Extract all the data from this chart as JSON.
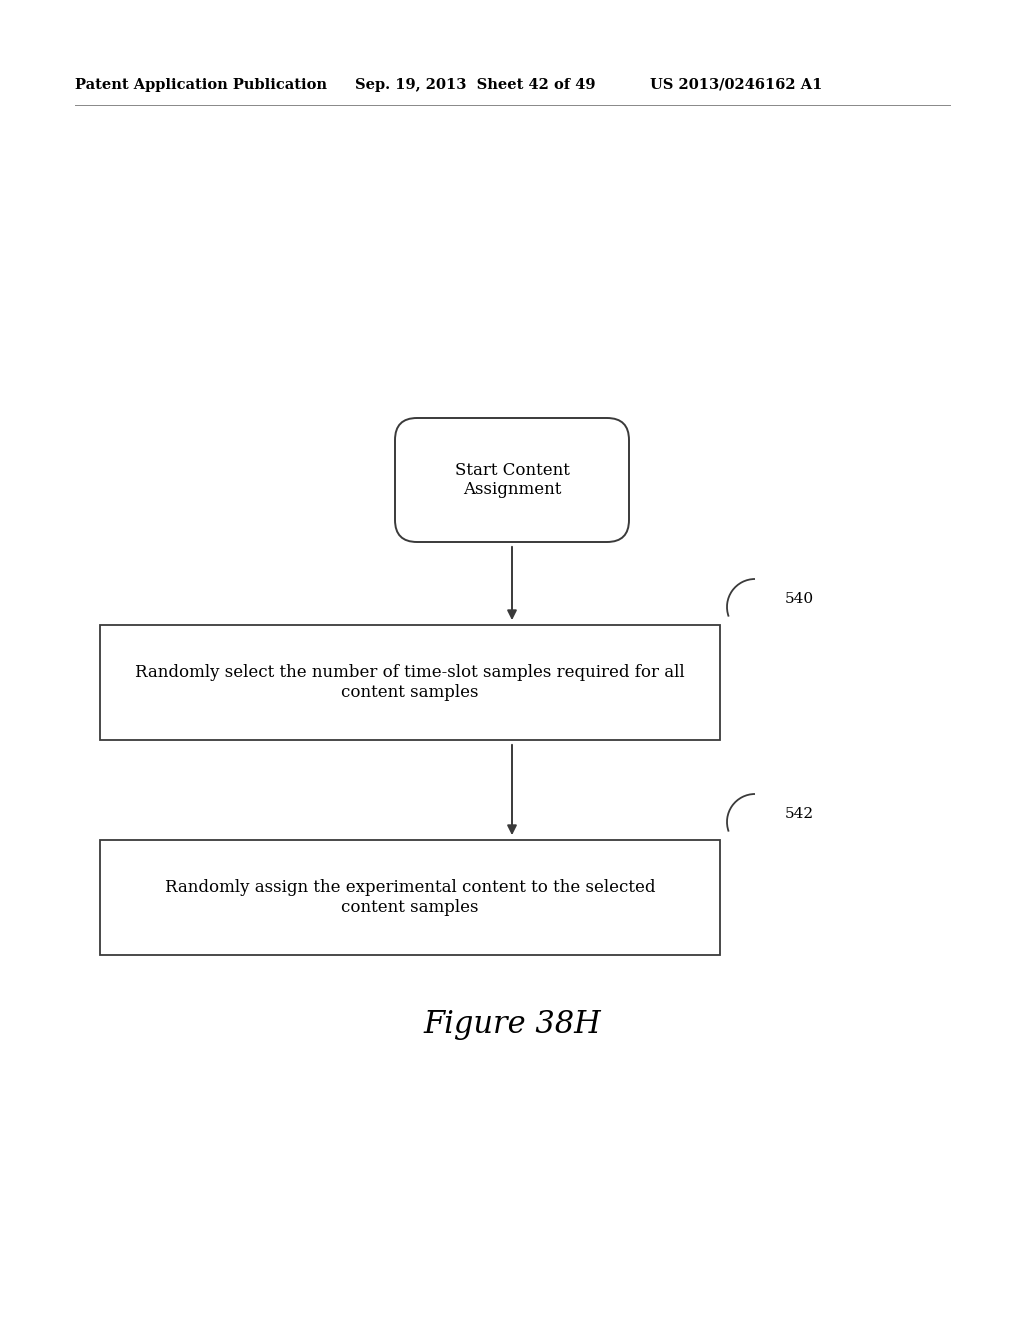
{
  "bg_color": "#ffffff",
  "header_left": "Patent Application Publication",
  "header_mid": "Sep. 19, 2013  Sheet 42 of 49",
  "header_right": "US 2013/0246162 A1",
  "start_label": "Start Content\nAssignment",
  "box1_label": "Randomly select the number of time-slot samples required for all\ncontent samples",
  "box1_tag": "540",
  "box2_label": "Randomly assign the experimental content to the selected\ncontent samples",
  "box2_tag": "542",
  "figure_label": "Figure 38H",
  "line_color": "#3a3a3a",
  "text_color": "#000000",
  "bg_white": "#ffffff"
}
